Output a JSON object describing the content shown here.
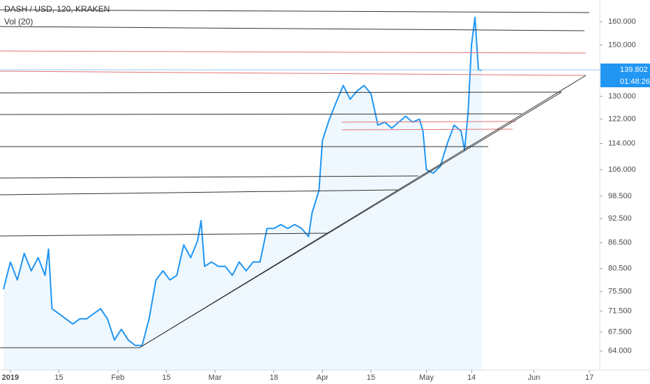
{
  "header": {
    "symbol": "DASH / USD, 120, KRAKEN",
    "indicator": "Vol (20)"
  },
  "price_tag": {
    "price": "139.802",
    "countdown": "01:48:26"
  },
  "chart_data": {
    "type": "line",
    "log_scale": true,
    "color": "#2196f3",
    "xlim": [
      "2018-12-29",
      "2019-06-20"
    ],
    "ylim": [
      60.7,
      170
    ],
    "xticks": [
      {
        "value": "2019-01-01",
        "label": "2019"
      },
      {
        "value": "2019-01-15",
        "label": "15"
      },
      {
        "value": "2019-02-01",
        "label": "Feb"
      },
      {
        "value": "2019-02-15",
        "label": "15"
      },
      {
        "value": "2019-03-01",
        "label": "Mar"
      },
      {
        "value": "2019-03-18",
        "label": "18"
      },
      {
        "value": "2019-04-01",
        "label": "Apr"
      },
      {
        "value": "2019-04-15",
        "label": "15"
      },
      {
        "value": "2019-05-01",
        "label": "May"
      },
      {
        "value": "2019-05-14",
        "label": "14"
      },
      {
        "value": "2019-06-01",
        "label": "Jun"
      },
      {
        "value": "2019-06-17",
        "label": "17"
      }
    ],
    "yticks": [
      {
        "value": 160,
        "label": "160.000"
      },
      {
        "value": 150,
        "label": "150.000"
      },
      {
        "value": 130,
        "label": "130.000"
      },
      {
        "value": 122,
        "label": "122.000"
      },
      {
        "value": 114,
        "label": "114.000"
      },
      {
        "value": 106,
        "label": "106.000"
      },
      {
        "value": 98.5,
        "label": "98.500"
      },
      {
        "value": 92.5,
        "label": "92.500"
      },
      {
        "value": 86.5,
        "label": "86.500"
      },
      {
        "value": 80.5,
        "label": "80.500"
      },
      {
        "value": 75.5,
        "label": "75.500"
      },
      {
        "value": 71.5,
        "label": "71.500"
      },
      {
        "value": 67.5,
        "label": "67.500"
      },
      {
        "value": 64,
        "label": "64.000"
      }
    ],
    "x": [
      "2018-12-30",
      "2019-01-01",
      "2019-01-03",
      "2019-01-05",
      "2019-01-07",
      "2019-01-09",
      "2019-01-11",
      "2019-01-12",
      "2019-01-13",
      "2019-01-15",
      "2019-01-17",
      "2019-01-19",
      "2019-01-21",
      "2019-01-23",
      "2019-01-25",
      "2019-01-27",
      "2019-01-29",
      "2019-01-31",
      "2019-02-02",
      "2019-02-04",
      "2019-02-06",
      "2019-02-08",
      "2019-02-10",
      "2019-02-12",
      "2019-02-14",
      "2019-02-16",
      "2019-02-18",
      "2019-02-20",
      "2019-02-22",
      "2019-02-24",
      "2019-02-25",
      "2019-02-26",
      "2019-02-28",
      "2019-03-02",
      "2019-03-04",
      "2019-03-06",
      "2019-03-08",
      "2019-03-10",
      "2019-03-12",
      "2019-03-14",
      "2019-03-16",
      "2019-03-18",
      "2019-03-20",
      "2019-03-22",
      "2019-03-24",
      "2019-03-26",
      "2019-03-28",
      "2019-03-29",
      "2019-03-31",
      "2019-04-01",
      "2019-04-03",
      "2019-04-05",
      "2019-04-07",
      "2019-04-09",
      "2019-04-11",
      "2019-04-13",
      "2019-04-15",
      "2019-04-17",
      "2019-04-19",
      "2019-04-21",
      "2019-04-23",
      "2019-04-25",
      "2019-04-27",
      "2019-04-29",
      "2019-04-30",
      "2019-05-01",
      "2019-05-03",
      "2019-05-05",
      "2019-05-07",
      "2019-05-09",
      "2019-05-11",
      "2019-05-12",
      "2019-05-13",
      "2019-05-14",
      "2019-05-15",
      "2019-05-16",
      "2019-05-17"
    ],
    "series": [
      {
        "name": "DASH / USD",
        "values": [
          76,
          82,
          78,
          84,
          80,
          83,
          79,
          85,
          72,
          71,
          70,
          69,
          70,
          70,
          71,
          72,
          70,
          66,
          68,
          66,
          65,
          65,
          70,
          78,
          80,
          78,
          79,
          86,
          83,
          87,
          92,
          81,
          82,
          81,
          81,
          79,
          82,
          80,
          82,
          82,
          90,
          90,
          91,
          90,
          91,
          90,
          88,
          94,
          100,
          115,
          122,
          128,
          134,
          129,
          132,
          134,
          131,
          120,
          121,
          119,
          121,
          123,
          121,
          122,
          118,
          106,
          105,
          107,
          114,
          120,
          118,
          112,
          124,
          150,
          162,
          140,
          139.8
        ]
      }
    ]
  }
}
